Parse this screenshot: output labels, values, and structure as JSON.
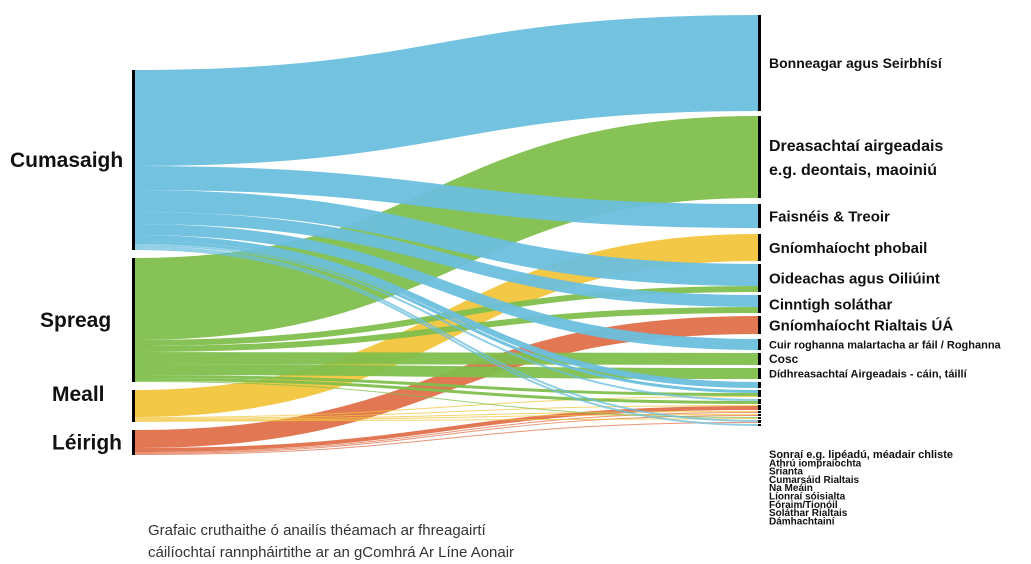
{
  "colors": {
    "Cumasaigh": "#6bbfdd",
    "Spreag": "#7fbf4d",
    "Meall": "#f2c53d",
    "Léirigh": "#e0704a",
    "node_bar": "#000000"
  },
  "sources": [
    {
      "id": "cumasaigh",
      "label": "Cumasaigh"
    },
    {
      "id": "spreag",
      "label": "Spreag"
    },
    {
      "id": "meall",
      "label": "Meall"
    },
    {
      "id": "leirigh",
      "label": "Léirigh"
    }
  ],
  "targets": [
    {
      "id": "t0",
      "label": "Bonneagar agus Seirbhísí",
      "bold": true
    },
    {
      "id": "t1",
      "label": "Dreasachtaí airgeadais",
      "label2": "e.g. deontais, maoiniú"
    },
    {
      "id": "t2",
      "label": "Faisnéis & Treoir"
    },
    {
      "id": "t3",
      "label": "Gníomhaíocht phobail"
    },
    {
      "id": "t4",
      "label": "Oideachas agus Oiliúint"
    },
    {
      "id": "t5",
      "label": "Cinntigh soláthar"
    },
    {
      "id": "t6",
      "label": "Gníomhaíocht Rialtais ÚÁ"
    },
    {
      "id": "t7",
      "label": "Cuir roghanna malartacha ar fáil / Roghanna"
    },
    {
      "id": "t8",
      "label": "Cosc"
    },
    {
      "id": "t9",
      "label": "Dídhreasachtaí Airgeadais - cáin, táillí"
    },
    {
      "id": "t10",
      "label": "Sonraí e.g. lipéadú, méadair chliste"
    },
    {
      "id": "t11",
      "label": "Athrú iompraíochta"
    },
    {
      "id": "t12",
      "label": "Srianta"
    },
    {
      "id": "t13",
      "label": "Cumarsáid Rialtais"
    },
    {
      "id": "t14",
      "label": "Na Meáin"
    },
    {
      "id": "t15",
      "label": "Líonraí sóisialta"
    },
    {
      "id": "t16",
      "label": "Fóraim/Tionóil"
    },
    {
      "id": "t17",
      "label": "Soláthar Rialtais"
    },
    {
      "id": "t18",
      "label": "Dámhachtainí"
    }
  ],
  "flows": [
    {
      "source": "cumasaigh",
      "target": "t0",
      "value": 96
    },
    {
      "source": "cumasaigh",
      "target": "t2",
      "value": 24
    },
    {
      "source": "cumasaigh",
      "target": "t4",
      "value": 22
    },
    {
      "source": "cumasaigh",
      "target": "t5",
      "value": 12
    },
    {
      "source": "cumasaigh",
      "target": "t7",
      "value": 11
    },
    {
      "source": "cumasaigh",
      "target": "t10",
      "value": 6
    },
    {
      "source": "cumasaigh",
      "target": "t11",
      "value": 3
    },
    {
      "source": "cumasaigh",
      "target": "t12",
      "value": 2
    },
    {
      "source": "cumasaigh",
      "target": "t17",
      "value": 2
    },
    {
      "source": "cumasaigh",
      "target": "t18",
      "value": 2
    },
    {
      "source": "spreag",
      "target": "t1",
      "value": 82
    },
    {
      "source": "spreag",
      "target": "t4",
      "value": 6
    },
    {
      "source": "spreag",
      "target": "t5",
      "value": 6
    },
    {
      "source": "spreag",
      "target": "t8",
      "value": 12
    },
    {
      "source": "spreag",
      "target": "t9",
      "value": 11
    },
    {
      "source": "spreag",
      "target": "t11",
      "value": 3
    },
    {
      "source": "spreag",
      "target": "t12",
      "value": 3
    },
    {
      "source": "spreag",
      "target": "t16",
      "value": 1
    },
    {
      "source": "meall",
      "target": "t3",
      "value": 27
    },
    {
      "source": "meall",
      "target": "t11",
      "value": 1
    },
    {
      "source": "meall",
      "target": "t13",
      "value": 1
    },
    {
      "source": "meall",
      "target": "t14",
      "value": 1
    },
    {
      "source": "meall",
      "target": "t15",
      "value": 1
    },
    {
      "source": "meall",
      "target": "t16",
      "value": 1
    },
    {
      "source": "leirigh",
      "target": "t6",
      "value": 18
    },
    {
      "source": "leirigh",
      "target": "t13",
      "value": 4
    },
    {
      "source": "leirigh",
      "target": "t14",
      "value": 1
    },
    {
      "source": "leirigh",
      "target": "t15",
      "value": 1
    },
    {
      "source": "leirigh",
      "target": "t17",
      "value": 1
    }
  ],
  "caption": {
    "line1": "Grafaic cruthaithe ó anailís théamach ar fhreagairtí",
    "line2": "cáilíochtaí rannpháirtithe ar an gComhrá Ar Líne Aonair"
  }
}
